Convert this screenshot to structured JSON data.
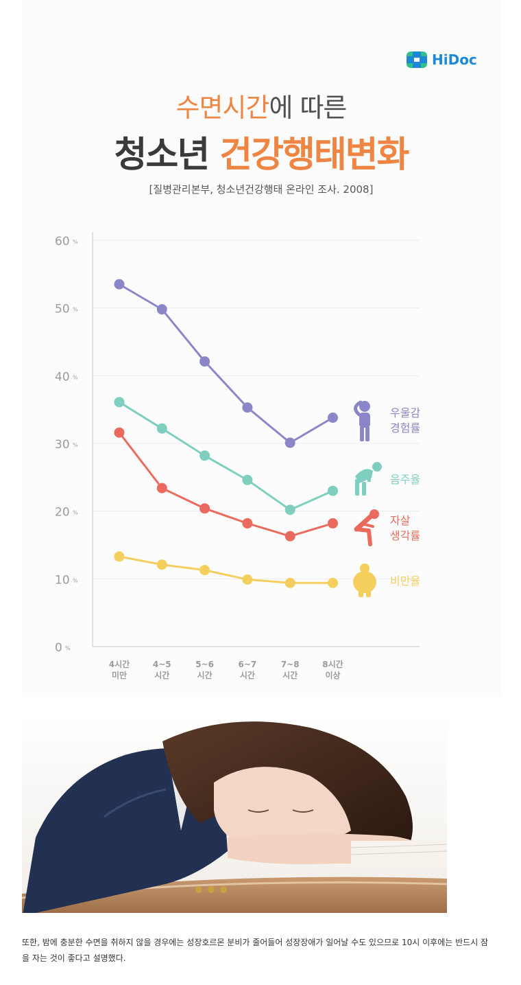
{
  "brand": {
    "logo_text": "HiDoc",
    "color": "#1e88d8"
  },
  "title": {
    "line1_accent": "수면시간",
    "line1_rest": "에 따른",
    "line2_main": "청소년",
    "line2_accent": "건강행태변화"
  },
  "source": "[질병관리본부, 청소년건강행태 온라인 조사. 2008]",
  "chart_data": {
    "type": "line",
    "categories": [
      [
        "4시간",
        "미만"
      ],
      [
        "4~5",
        "시간"
      ],
      [
        "5~6",
        "시간"
      ],
      [
        "6~7",
        "시간"
      ],
      [
        "7~8",
        "시간"
      ],
      [
        "8시간",
        "이상"
      ]
    ],
    "ylim": [
      0,
      60
    ],
    "yticks": [
      0,
      10,
      20,
      30,
      40,
      50,
      60
    ],
    "ytick_unit": "%",
    "grid": true,
    "legend_placement": "right",
    "series": [
      {
        "name": "우울감 경험률",
        "label_lines": [
          "우울감",
          "경험률"
        ],
        "color": "#8b86c8",
        "icon": "depressed-person-icon",
        "values": [
          53.5,
          49.8,
          42.1,
          35.3,
          30.1,
          33.8
        ]
      },
      {
        "name": "음주율",
        "label_lines": [
          "음주율"
        ],
        "color": "#7ecfbf",
        "icon": "drinking-person-icon",
        "values": [
          36.1,
          32.2,
          28.2,
          24.6,
          20.2,
          23.0
        ]
      },
      {
        "name": "자살 생각률",
        "label_lines": [
          "자살",
          "생각률"
        ],
        "color": "#ea6b5e",
        "icon": "despairing-person-icon",
        "values": [
          31.6,
          23.4,
          20.4,
          18.2,
          16.3,
          18.2
        ]
      },
      {
        "name": "비만율",
        "label_lines": [
          "비만율"
        ],
        "color": "#f4cf5e",
        "icon": "obese-person-icon",
        "values": [
          13.3,
          12.1,
          11.3,
          9.9,
          9.4,
          9.4
        ]
      }
    ]
  },
  "caption": "또한, 밤에 충분한 수면을 취하지 않을 경우에는 성장호르몬 분비가 줄어들어 성장장애가 일어날 수도 있으므로 10시 이후에는 반드시 잠을 자는 것이 좋다고 설명했다."
}
